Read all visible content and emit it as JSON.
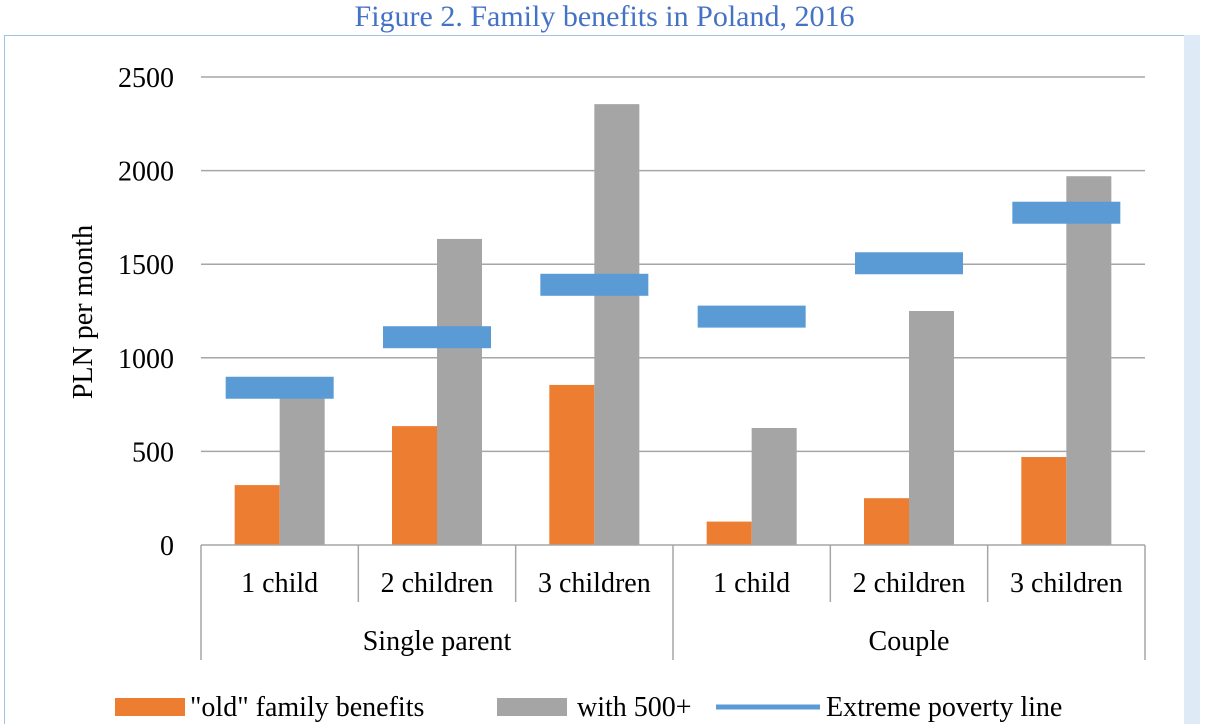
{
  "title": "Figure 2. Family benefits in Poland, 2016",
  "chart_data": {
    "type": "bar",
    "title": "Figure 2. Family benefits in Poland, 2016",
    "ylabel": "PLN per month",
    "xlabel": "",
    "ylim": [
      0,
      2500
    ],
    "yticks": [
      0,
      500,
      1000,
      1500,
      2000,
      2500
    ],
    "grid": true,
    "groups": [
      {
        "label": "Single parent",
        "categories": [
          "1 child",
          "2 children",
          "3 children"
        ]
      },
      {
        "label": "Couple",
        "categories": [
          "1 child",
          "2 children",
          "3 children"
        ]
      }
    ],
    "categories": [
      "1 child",
      "2 children",
      "3 children",
      "1 child",
      "2 children",
      "3 children"
    ],
    "series": [
      {
        "name": "\"old\" family benefits",
        "kind": "bar",
        "color": "#ed7d31",
        "values": [
          320,
          635,
          855,
          125,
          250,
          470
        ]
      },
      {
        "name": "with 500+",
        "kind": "bar",
        "color": "#a5a5a5",
        "values": [
          820,
          1635,
          2355,
          625,
          1250,
          1970
        ]
      },
      {
        "name": "Extreme poverty line",
        "kind": "marker",
        "color": "#5b9bd5",
        "values": [
          840,
          1110,
          1390,
          1220,
          1505,
          1775
        ]
      }
    ],
    "legend_position": "bottom"
  }
}
